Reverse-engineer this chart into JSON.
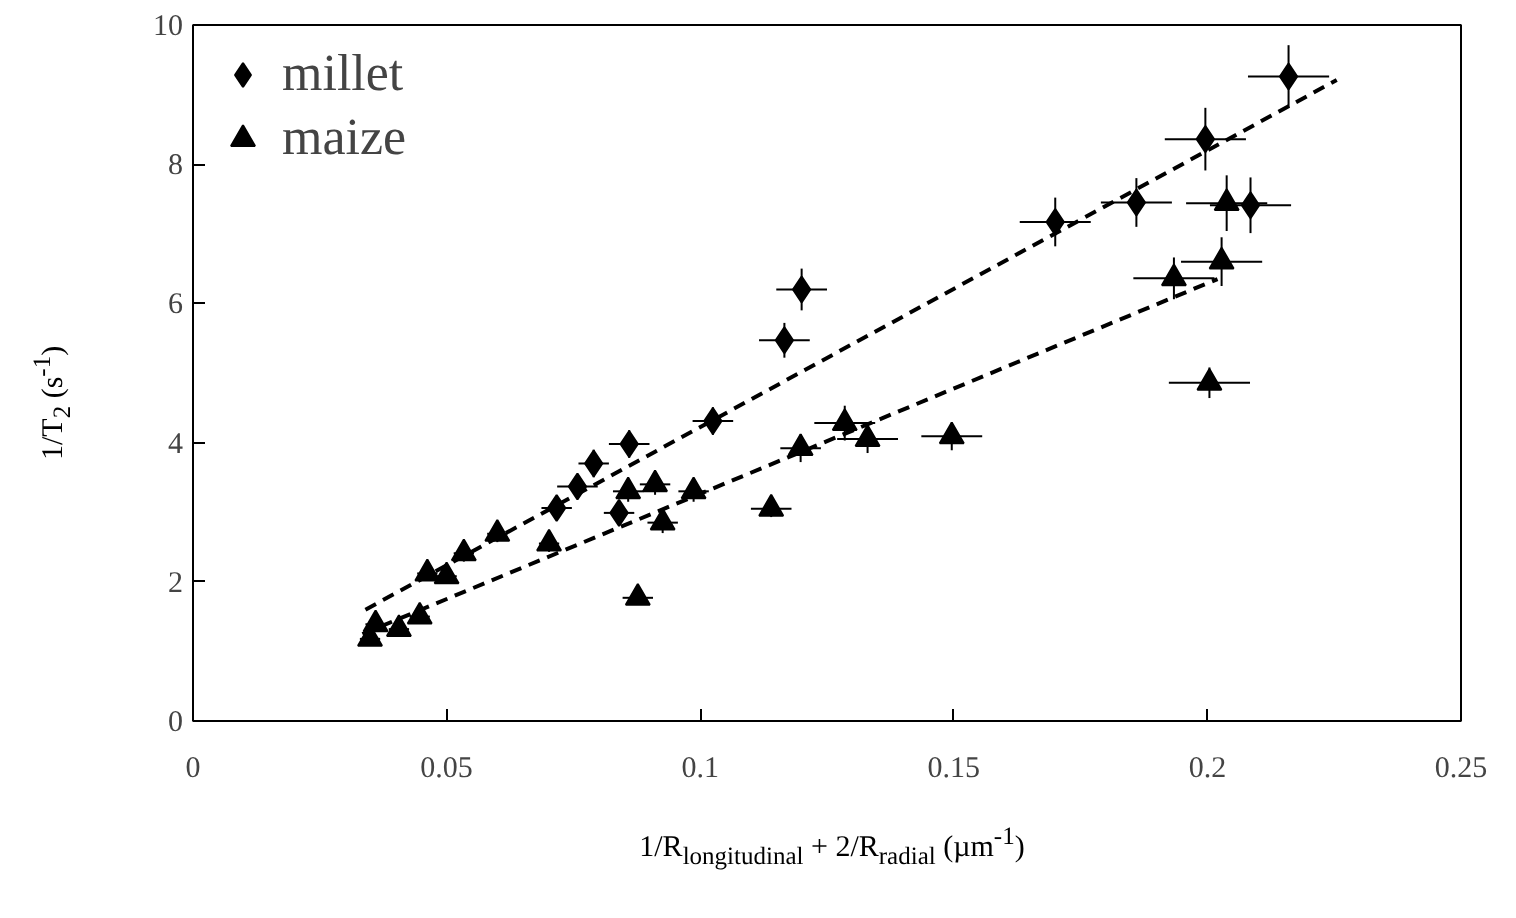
{
  "chart_data": {
    "type": "scatter",
    "xlabel": "1/R$_{longitudinal}$ + 2/R$_{radial}$ (µm$^{-1}$)",
    "ylabel": "1/T$_{2}$ (s$^{-1}$)",
    "xlim": [
      0,
      0.25
    ],
    "ylim": [
      0,
      10
    ],
    "xticks": [
      0,
      0.05,
      0.1,
      0.15,
      0.2,
      0.25
    ],
    "yticks": [
      0,
      2,
      4,
      6,
      8,
      10
    ],
    "grid": false,
    "legend": "top left",
    "series": [
      {
        "name": "millet",
        "color": "#000000",
        "marker": "diamond",
        "x": [
          0.0717,
          0.0758,
          0.079,
          0.086,
          0.084,
          0.1025,
          0.1166,
          0.12,
          0.17,
          0.186,
          0.1996,
          0.216,
          0.2085
        ],
        "values": [
          3.06,
          3.37,
          3.7,
          3.98,
          2.99,
          4.31,
          5.47,
          6.2,
          7.17,
          7.45,
          8.36,
          9.26,
          7.41
        ],
        "errors": [
          0.15,
          0.15,
          0.2,
          0.2,
          0.15,
          0.2,
          0.25,
          0.3,
          0.35,
          0.35,
          0.45,
          0.45,
          0.4
        ],
        "xerrors": [
          0.003,
          0.004,
          0.003,
          0.004,
          0.003,
          0.004,
          0.005,
          0.005,
          0.007,
          0.007,
          0.008,
          0.008,
          0.008
        ]
      },
      {
        "name": "maize",
        "color": "#000000",
        "marker": "triangle",
        "x": [
          0.0349,
          0.036,
          0.0406,
          0.0447,
          0.0462,
          0.05,
          0.0534,
          0.06,
          0.0702,
          0.0858,
          0.0911,
          0.0926,
          0.0987,
          0.0877,
          0.114,
          0.1198,
          0.1285,
          0.133,
          0.1496,
          0.1934,
          0.2028,
          0.2004,
          0.2038
        ],
        "values": [
          1.18,
          1.39,
          1.32,
          1.5,
          2.12,
          2.08,
          2.41,
          2.69,
          2.55,
          3.3,
          3.4,
          2.85,
          3.3,
          1.77,
          3.05,
          3.92,
          4.28,
          4.05,
          4.09,
          6.36,
          6.6,
          4.86,
          7.44
        ],
        "errors": [
          0.1,
          0.1,
          0.1,
          0.1,
          0.1,
          0.1,
          0.12,
          0.12,
          0.12,
          0.15,
          0.15,
          0.15,
          0.15,
          0.1,
          0.12,
          0.2,
          0.25,
          0.2,
          0.2,
          0.3,
          0.35,
          0.22,
          0.4
        ],
        "xerrors": [
          0.002,
          0.002,
          0.002,
          0.002,
          0.002,
          0.002,
          0.002,
          0.002,
          0.002,
          0.003,
          0.003,
          0.003,
          0.003,
          0.003,
          0.004,
          0.004,
          0.006,
          0.006,
          0.006,
          0.008,
          0.008,
          0.008,
          0.008
        ]
      },
      {
        "type": "line",
        "color": "#000000",
        "line_style": "dashed",
        "marker": "none",
        "x": [
          0.034,
          0.2255
        ],
        "values": [
          1.6,
          9.21
        ]
      },
      {
        "type": "line",
        "color": "#000000",
        "line_style": "dashed",
        "marker": "none",
        "x": [
          0.0334,
          0.202
        ],
        "values": [
          1.25,
          6.35
        ]
      }
    ]
  }
}
